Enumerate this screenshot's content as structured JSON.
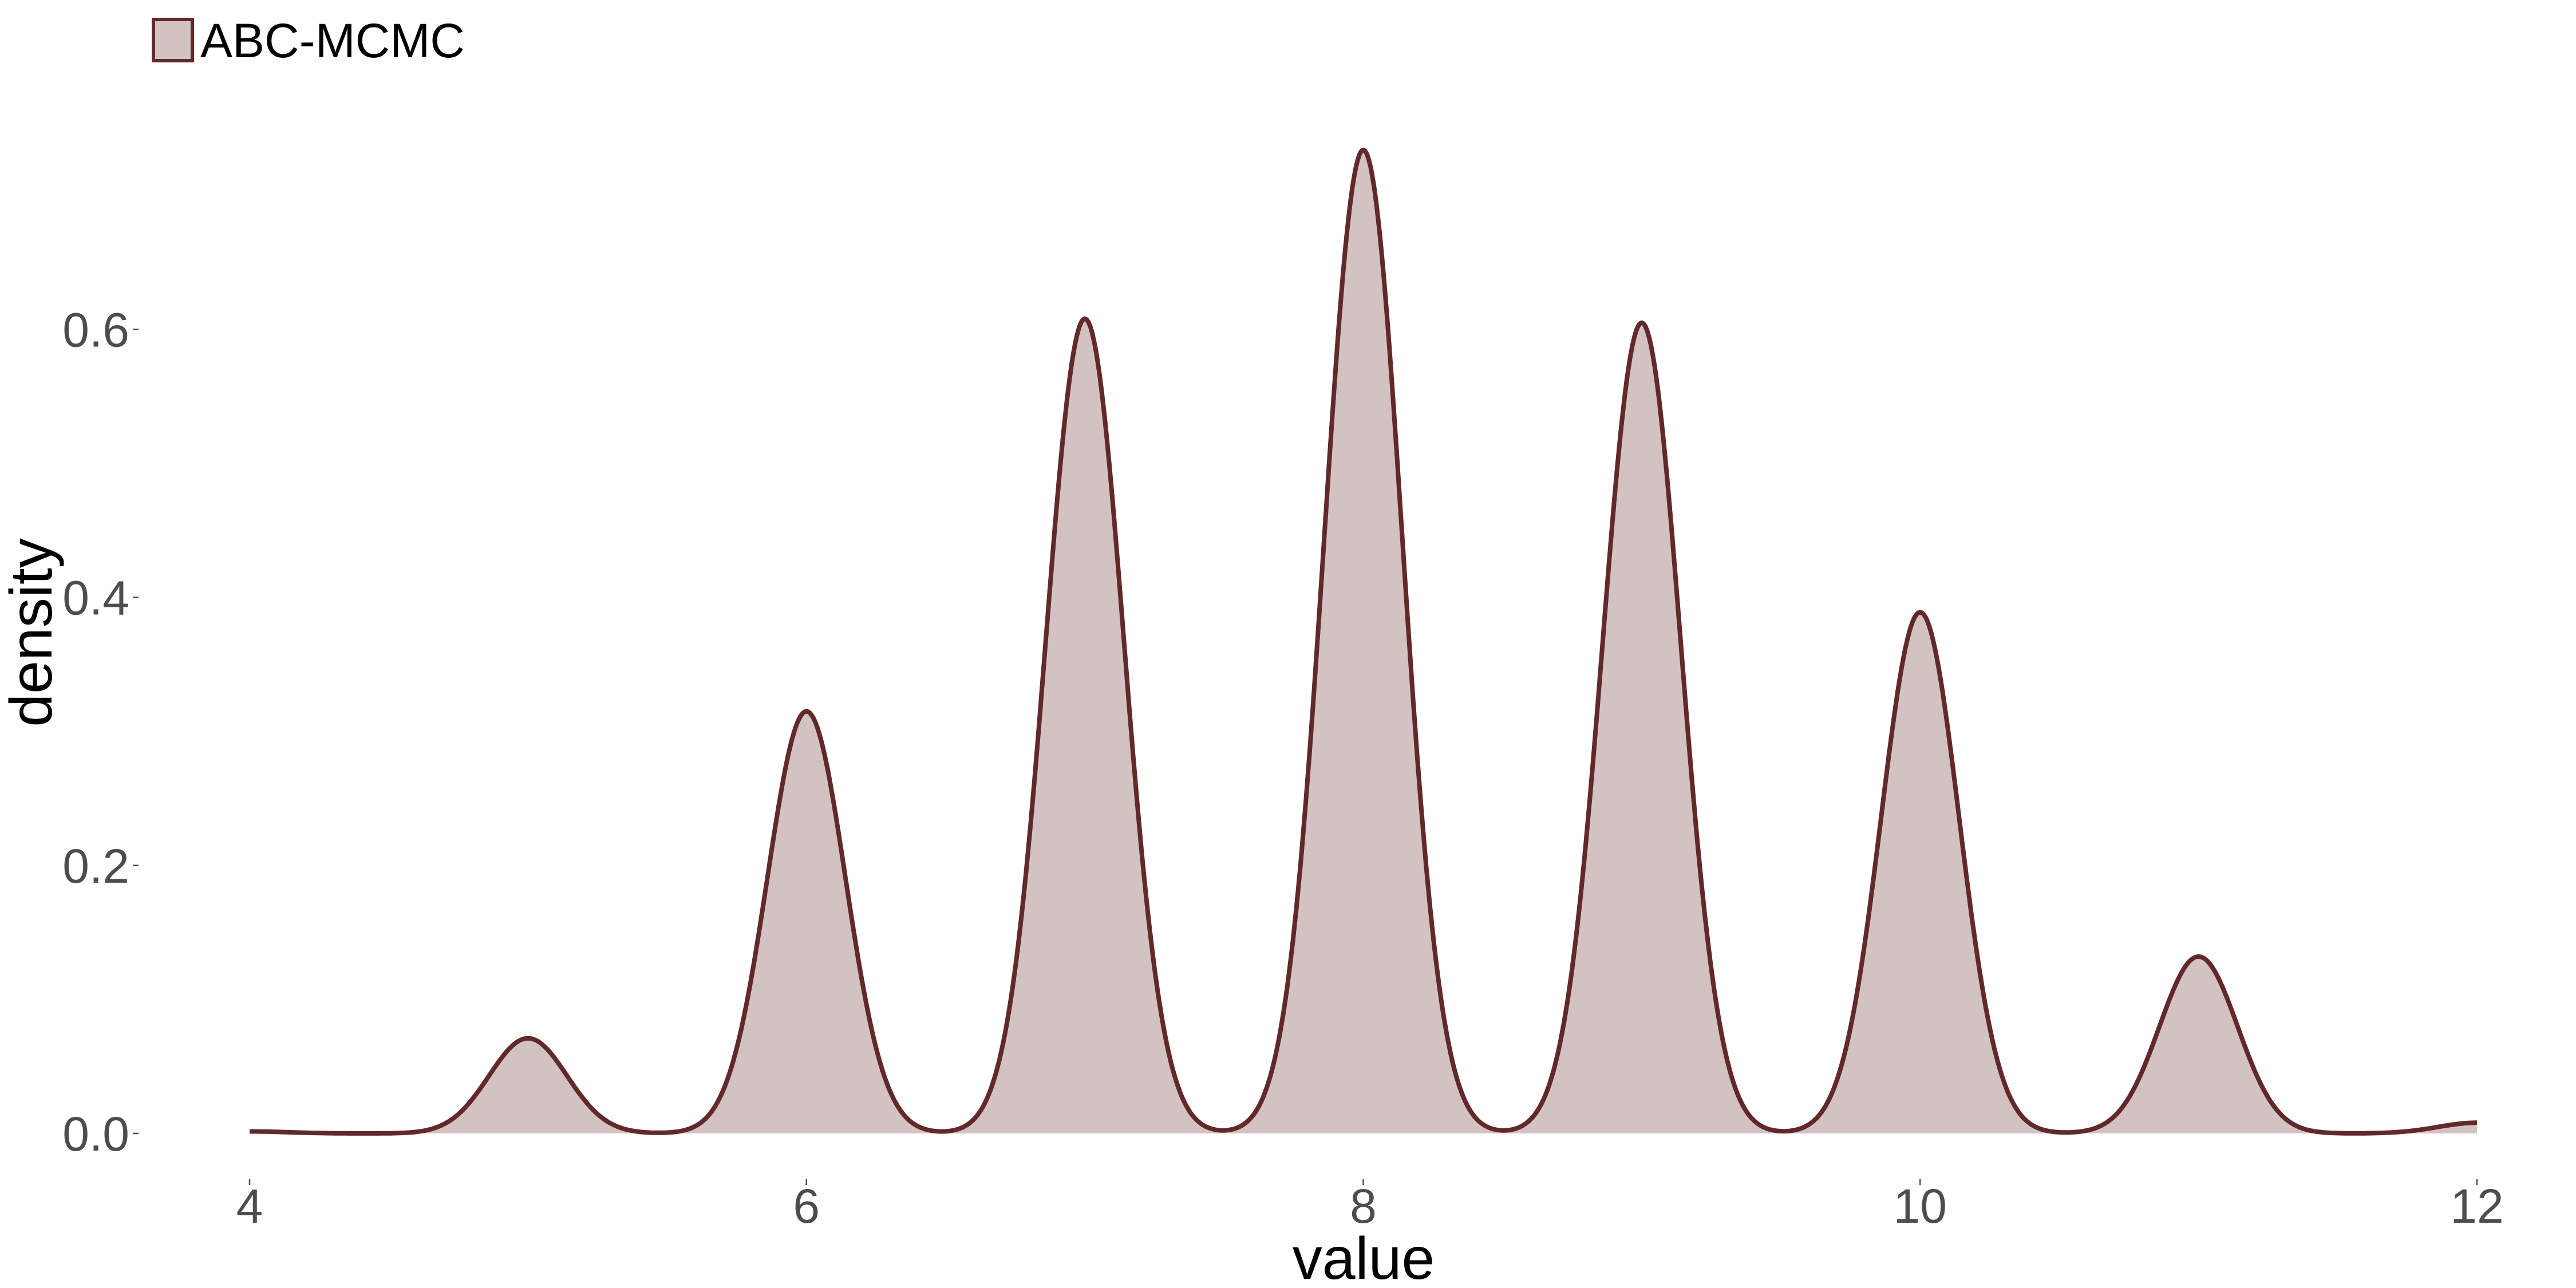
{
  "chart_data": {
    "type": "area",
    "title": "",
    "xlabel": "value",
    "ylabel": "density",
    "xlim": [
      4,
      12
    ],
    "ylim": [
      0,
      0.745
    ],
    "x_ticks": [
      4,
      6,
      8,
      10,
      12
    ],
    "x_tick_labels": [
      "4",
      "6",
      "8",
      "10",
      "12"
    ],
    "y_ticks": [
      0.0,
      0.2,
      0.4,
      0.6
    ],
    "y_tick_labels": [
      "0.0",
      "0.2",
      "0.4",
      "0.6"
    ],
    "grid": false,
    "legend_position": "top-left",
    "series": [
      {
        "name": "ABC-MCMC",
        "fill_color": "#d3c2c2",
        "line_color": "#62292a",
        "peaks": [
          {
            "x": 4.0,
            "y": 0.0015
          },
          {
            "x": 5.0,
            "y": 0.071
          },
          {
            "x": 6.0,
            "y": 0.315
          },
          {
            "x": 7.0,
            "y": 0.608
          },
          {
            "x": 8.0,
            "y": 0.734
          },
          {
            "x": 9.0,
            "y": 0.605
          },
          {
            "x": 10.0,
            "y": 0.389
          },
          {
            "x": 11.0,
            "y": 0.132
          },
          {
            "x": 12.0,
            "y": 0.008
          }
        ]
      }
    ]
  }
}
